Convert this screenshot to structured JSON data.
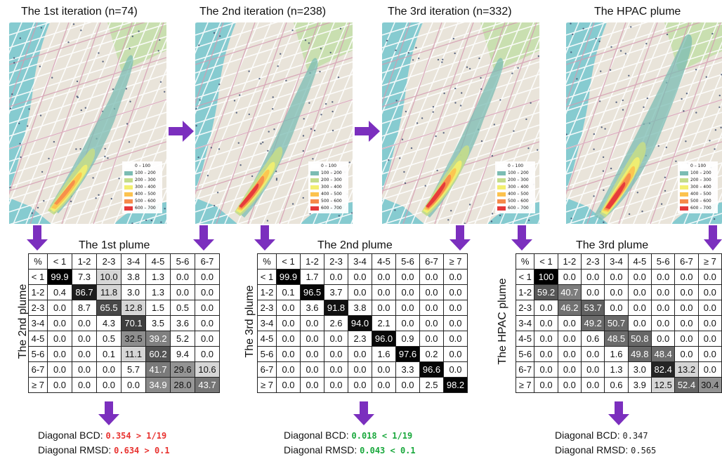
{
  "titles": [
    "The 1st iteration (n=74)",
    "The 2nd iteration (n=238)",
    "The 3rd iteration (n=332)",
    "The HPAC plume"
  ],
  "legend": [
    {
      "label": "0 – 100",
      "color": "#ffffff"
    },
    {
      "label": "100 – 200",
      "color": "#7bbcb3"
    },
    {
      "label": "200 – 300",
      "color": "#c4dc8a"
    },
    {
      "label": "300 – 400",
      "color": "#f3ef6f"
    },
    {
      "label": "400 – 500",
      "color": "#fcc24e"
    },
    {
      "label": "500 – 600",
      "color": "#f6894a"
    },
    {
      "label": "600 – 700",
      "color": "#e5383a"
    }
  ],
  "matrices": [
    {
      "title": "The 1st plume",
      "ylabel": "The 2nd plume",
      "corner": "%",
      "headers": [
        "< 1",
        "1-2",
        "2-3",
        "3-4",
        "4-5",
        "5-6",
        "6-7"
      ],
      "row_labels": [
        "< 1",
        "1-2",
        "2-3",
        "3-4",
        "4-5",
        "5-6",
        "6-7",
        "≥ 7"
      ],
      "rows": [
        [
          "99.9",
          "7.3",
          "10.0",
          "3.8",
          "1.3",
          "0.0",
          "0.0"
        ],
        [
          "0.4",
          "86.7",
          "11.8",
          "3.0",
          "1.3",
          "0.0",
          "0.0"
        ],
        [
          "0.0",
          "8.7",
          "65.5",
          "12.8",
          "1.5",
          "0.5",
          "0.0"
        ],
        [
          "0.0",
          "0.0",
          "4.3",
          "70.1",
          "3.5",
          "3.6",
          "0.0"
        ],
        [
          "0.0",
          "0.0",
          "0.5",
          "32.5",
          "39.2",
          "5.2",
          "0.0"
        ],
        [
          "0.0",
          "0.0",
          "0.1",
          "11.1",
          "60.2",
          "9.4",
          "0.0"
        ],
        [
          "0.0",
          "0.0",
          "0.0",
          "5.7",
          "41.7",
          "29.6",
          "10.6"
        ],
        [
          "0.0",
          "0.0",
          "0.0",
          "0.0",
          "34.9",
          "28.0",
          "43.7"
        ]
      ],
      "bcd_label": "Diagonal BCD:",
      "bcd_value": "0.354 > 1/19",
      "rmsd_label": "Diagonal RMSD:",
      "rmsd_value": "0.634 > 0.1",
      "status": "bad"
    },
    {
      "title": "The 2nd plume",
      "ylabel": "The 3rd plume",
      "corner": "%",
      "headers": [
        "< 1",
        "1-2",
        "2-3",
        "3-4",
        "4-5",
        "5-6",
        "6-7",
        "≥ 7"
      ],
      "row_labels": [
        "< 1",
        "1-2",
        "2-3",
        "3-4",
        "4-5",
        "5-6",
        "6-7",
        "≥ 7"
      ],
      "rows": [
        [
          "99.9",
          "1.7",
          "0.0",
          "0.0",
          "0.0",
          "0.0",
          "0.0",
          "0.0"
        ],
        [
          "0.1",
          "96.5",
          "3.7",
          "0.0",
          "0.0",
          "0.0",
          "0.0",
          "0.0"
        ],
        [
          "0.0",
          "3.6",
          "91.8",
          "3.8",
          "0.0",
          "0.0",
          "0.0",
          "0.0"
        ],
        [
          "0.0",
          "0.0",
          "2.6",
          "94.0",
          "2.1",
          "0.0",
          "0.0",
          "0.0"
        ],
        [
          "0.0",
          "0.0",
          "0.0",
          "2.3",
          "96.0",
          "0.9",
          "0.0",
          "0.0"
        ],
        [
          "0.0",
          "0.0",
          "0.0",
          "0.0",
          "1.6",
          "97.6",
          "0.2",
          "0.0"
        ],
        [
          "0.0",
          "0.0",
          "0.0",
          "0.0",
          "0.0",
          "3.3",
          "96.6",
          "0.0"
        ],
        [
          "0.0",
          "0.0",
          "0.0",
          "0.0",
          "0.0",
          "0.0",
          "2.5",
          "98.2"
        ]
      ],
      "bcd_label": "Diagonal BCD:",
      "bcd_value": "0.018 < 1/19",
      "rmsd_label": "Diagonal RMSD:",
      "rmsd_value": "0.043 < 0.1",
      "status": "good"
    },
    {
      "title": "The 3rd plume",
      "ylabel": "The HPAC plume",
      "corner": "%",
      "headers": [
        "< 1",
        "1-2",
        "2-3",
        "3-4",
        "4-5",
        "5-6",
        "6-7",
        "≥ 7"
      ],
      "row_labels": [
        "< 1",
        "1-2",
        "2-3",
        "3-4",
        "4-5",
        "5-6",
        "6-7",
        "≥ 7"
      ],
      "rows": [
        [
          "100",
          "0.0",
          "0.0",
          "0.0",
          "0.0",
          "0.0",
          "0.0",
          "0.0"
        ],
        [
          "59.2",
          "40.7",
          "0.0",
          "0.0",
          "0.0",
          "0.0",
          "0.0",
          "0.0"
        ],
        [
          "0.0",
          "46.2",
          "53.7",
          "0.0",
          "0.0",
          "0.0",
          "0.0",
          "0.0"
        ],
        [
          "0.0",
          "0.0",
          "49.2",
          "50.7",
          "0.0",
          "0.0",
          "0.0",
          "0.0"
        ],
        [
          "0.0",
          "0.0",
          "0.6",
          "48.5",
          "50.8",
          "0.0",
          "0.0",
          "0.0"
        ],
        [
          "0.0",
          "0.0",
          "0.0",
          "1.6",
          "49.8",
          "48.4",
          "0.0",
          "0.0"
        ],
        [
          "0.0",
          "0.0",
          "0.0",
          "1.3",
          "3.0",
          "82.4",
          "13.2",
          "0.0"
        ],
        [
          "0.0",
          "0.0",
          "0.0",
          "0.6",
          "3.9",
          "12.5",
          "52.4",
          "30.4"
        ]
      ],
      "bcd_label": "Diagonal BCD:",
      "bcd_value": "0.347",
      "rmsd_label": "Diagonal RMSD:",
      "rmsd_value": "0.565",
      "status": "neu"
    }
  ],
  "colors": {
    "arrow": "#7b2fbe",
    "bad": "#e8322f",
    "good": "#19a83c"
  }
}
